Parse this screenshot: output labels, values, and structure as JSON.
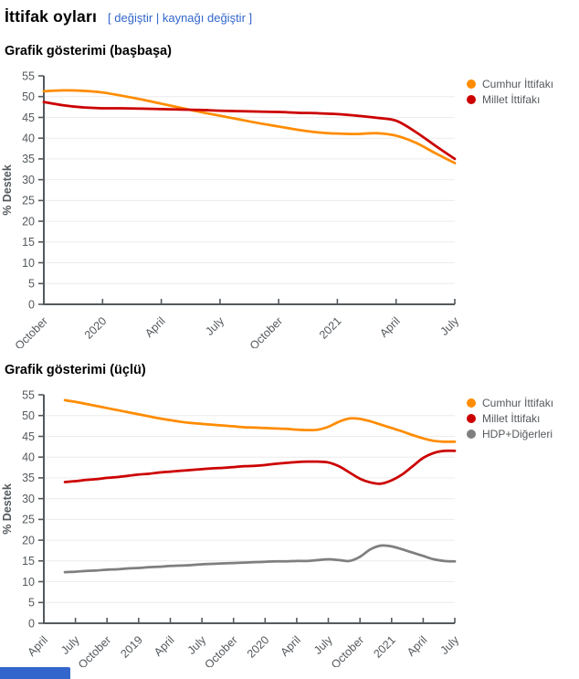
{
  "page": {
    "title": "İttifak oyları",
    "edit_section": {
      "open_bracket": "[",
      "edit_label": "değiştir",
      "divider": "|",
      "edit_source_label": "kaynağı değiştir",
      "close_bracket": "]"
    },
    "link_color": "#3366cc",
    "axis_text_color": "#54595d"
  },
  "chart_data": [
    {
      "type": "line",
      "title": "Grafik gösterimi (başbaşa)",
      "xlabel": "",
      "ylabel": "% Destek",
      "ylim": [
        0,
        55
      ],
      "ytick_step": 5,
      "grid": true,
      "legend_position": "right",
      "x_tick_labels": [
        "October",
        "2020",
        "April",
        "July",
        "October",
        "2021",
        "April",
        "July"
      ],
      "months_per_tick": 3,
      "x_start_offset_months": 0,
      "series": [
        {
          "name": "Cumhur İttifakı",
          "color": "#ff8c00",
          "values": [
            51.3,
            51.5,
            51.4,
            51.0,
            50.2,
            49.3,
            48.3,
            47.3,
            46.3,
            45.4,
            44.5,
            43.6,
            42.8,
            42.0,
            41.4,
            41.1,
            41.0,
            41.2,
            40.6,
            38.9,
            36.4,
            34.0
          ]
        },
        {
          "name": "Millet İttifakı",
          "color": "#cc0000",
          "values": [
            48.7,
            47.9,
            47.4,
            47.2,
            47.2,
            47.1,
            47.0,
            46.9,
            46.8,
            46.6,
            46.5,
            46.4,
            46.3,
            46.1,
            46.0,
            45.8,
            45.4,
            44.9,
            44.2,
            41.5,
            38.2,
            35.0
          ]
        }
      ]
    },
    {
      "type": "line",
      "title": "Grafik gösterimi (üçlü)",
      "xlabel": "",
      "ylabel": "% Destek",
      "ylim": [
        0,
        55
      ],
      "ytick_step": 5,
      "grid": true,
      "legend_position": "right",
      "x_tick_labels": [
        "April",
        "July",
        "October",
        "2019",
        "April",
        "July",
        "October",
        "2020",
        "April",
        "July",
        "October",
        "2021",
        "April",
        "July"
      ],
      "months_per_tick": 3,
      "x_start_offset_months": 2,
      "series": [
        {
          "name": "Cumhur İttifakı",
          "color": "#ff8c00",
          "values": [
            53.7,
            53.3,
            52.8,
            52.3,
            51.8,
            51.3,
            50.8,
            50.3,
            49.8,
            49.3,
            48.9,
            48.5,
            48.2,
            48.0,
            47.8,
            47.6,
            47.4,
            47.2,
            47.1,
            47.0,
            46.9,
            46.8,
            46.6,
            46.5,
            46.6,
            47.3,
            48.5,
            49.3,
            49.2,
            48.6,
            47.8,
            47.0,
            46.2,
            45.3,
            44.5,
            43.9,
            43.7,
            43.7
          ]
        },
        {
          "name": "Millet İttifakı",
          "color": "#cc0000",
          "values": [
            34.0,
            34.2,
            34.5,
            34.7,
            35.0,
            35.2,
            35.5,
            35.8,
            36.0,
            36.3,
            36.5,
            36.7,
            36.9,
            37.1,
            37.3,
            37.4,
            37.6,
            37.8,
            37.9,
            38.1,
            38.4,
            38.6,
            38.8,
            38.9,
            38.9,
            38.7,
            37.8,
            36.3,
            34.8,
            33.9,
            33.6,
            34.4,
            35.8,
            37.8,
            39.8,
            41.0,
            41.5,
            41.5
          ]
        },
        {
          "name": "HDP+Diğerleri",
          "color": "#7f7f7f",
          "values": [
            12.3,
            12.4,
            12.6,
            12.7,
            12.9,
            13.0,
            13.2,
            13.3,
            13.5,
            13.6,
            13.8,
            13.9,
            14.0,
            14.2,
            14.3,
            14.4,
            14.5,
            14.6,
            14.7,
            14.8,
            14.9,
            14.9,
            15.0,
            15.0,
            15.2,
            15.4,
            15.2,
            15.0,
            16.0,
            17.8,
            18.7,
            18.5,
            17.8,
            17.0,
            16.2,
            15.4,
            15.0,
            14.9
          ]
        }
      ]
    }
  ]
}
